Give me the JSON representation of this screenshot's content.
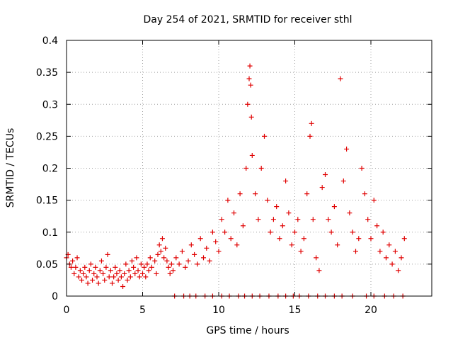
{
  "chart_data": {
    "type": "scatter",
    "title": "Day 254 of 2021, SRMTID for receiver sthl",
    "xlabel": "GPS time / hours",
    "ylabel": "SRMTID / TECUs",
    "xlim": [
      0,
      24
    ],
    "ylim": [
      0,
      0.4
    ],
    "x_ticks": [
      0,
      5,
      10,
      15,
      20
    ],
    "y_ticks": [
      0,
      0.05,
      0.1,
      0.15,
      0.2,
      0.25,
      0.3,
      0.35,
      0.4
    ],
    "grid": true,
    "marker": "+",
    "color": "#e00000",
    "series": [
      {
        "name": "SRMTID",
        "points": [
          [
            0.0,
            0.06
          ],
          [
            0.1,
            0.065
          ],
          [
            0.2,
            0.05
          ],
          [
            0.3,
            0.045
          ],
          [
            0.4,
            0.055
          ],
          [
            0.5,
            0.035
          ],
          [
            0.6,
            0.045
          ],
          [
            0.7,
            0.06
          ],
          [
            0.8,
            0.03
          ],
          [
            0.9,
            0.04
          ],
          [
            1.0,
            0.025
          ],
          [
            1.1,
            0.035
          ],
          [
            1.2,
            0.045
          ],
          [
            1.3,
            0.03
          ],
          [
            1.4,
            0.02
          ],
          [
            1.5,
            0.04
          ],
          [
            1.6,
            0.05
          ],
          [
            1.7,
            0.025
          ],
          [
            1.8,
            0.035
          ],
          [
            1.9,
            0.045
          ],
          [
            2.0,
            0.03
          ],
          [
            2.1,
            0.02
          ],
          [
            2.2,
            0.04
          ],
          [
            2.3,
            0.055
          ],
          [
            2.4,
            0.035
          ],
          [
            2.5,
            0.025
          ],
          [
            2.6,
            0.045
          ],
          [
            2.7,
            0.065
          ],
          [
            2.8,
            0.03
          ],
          [
            2.9,
            0.04
          ],
          [
            3.0,
            0.02
          ],
          [
            3.1,
            0.03
          ],
          [
            3.2,
            0.045
          ],
          [
            3.3,
            0.035
          ],
          [
            3.4,
            0.025
          ],
          [
            3.5,
            0.04
          ],
          [
            3.6,
            0.03
          ],
          [
            3.7,
            0.015
          ],
          [
            3.8,
            0.035
          ],
          [
            3.9,
            0.05
          ],
          [
            4.0,
            0.025
          ],
          [
            4.1,
            0.04
          ],
          [
            4.2,
            0.03
          ],
          [
            4.3,
            0.055
          ],
          [
            4.4,
            0.045
          ],
          [
            4.5,
            0.035
          ],
          [
            4.6,
            0.06
          ],
          [
            4.7,
            0.04
          ],
          [
            4.8,
            0.03
          ],
          [
            4.9,
            0.05
          ],
          [
            5.0,
            0.035
          ],
          [
            5.1,
            0.045
          ],
          [
            5.2,
            0.03
          ],
          [
            5.3,
            0.05
          ],
          [
            5.4,
            0.04
          ],
          [
            5.5,
            0.06
          ],
          [
            5.6,
            0.045
          ],
          [
            5.8,
            0.055
          ],
          [
            5.9,
            0.035
          ],
          [
            6.0,
            0.065
          ],
          [
            6.1,
            0.08
          ],
          [
            6.2,
            0.07
          ],
          [
            6.3,
            0.09
          ],
          [
            6.4,
            0.06
          ],
          [
            6.5,
            0.075
          ],
          [
            6.6,
            0.055
          ],
          [
            6.7,
            0.045
          ],
          [
            6.8,
            0.035
          ],
          [
            6.9,
            0.05
          ],
          [
            7.0,
            0.04
          ],
          [
            7.2,
            0.06
          ],
          [
            7.4,
            0.05
          ],
          [
            7.6,
            0.07
          ],
          [
            7.8,
            0.045
          ],
          [
            8.0,
            0.055
          ],
          [
            8.2,
            0.08
          ],
          [
            8.4,
            0.065
          ],
          [
            8.6,
            0.05
          ],
          [
            8.8,
            0.09
          ],
          [
            9.0,
            0.06
          ],
          [
            9.2,
            0.075
          ],
          [
            9.4,
            0.055
          ],
          [
            9.6,
            0.1
          ],
          [
            9.8,
            0.085
          ],
          [
            10.0,
            0.07
          ],
          [
            10.2,
            0.12
          ],
          [
            10.4,
            0.1
          ],
          [
            10.6,
            0.15
          ],
          [
            10.8,
            0.09
          ],
          [
            11.0,
            0.13
          ],
          [
            11.2,
            0.08
          ],
          [
            11.4,
            0.16
          ],
          [
            11.6,
            0.11
          ],
          [
            11.8,
            0.2
          ],
          [
            11.9,
            0.3
          ],
          [
            12.0,
            0.34
          ],
          [
            12.05,
            0.36
          ],
          [
            12.1,
            0.33
          ],
          [
            12.15,
            0.28
          ],
          [
            12.2,
            0.22
          ],
          [
            12.4,
            0.16
          ],
          [
            12.6,
            0.12
          ],
          [
            12.8,
            0.2
          ],
          [
            13.0,
            0.25
          ],
          [
            13.2,
            0.15
          ],
          [
            13.4,
            0.1
          ],
          [
            13.6,
            0.12
          ],
          [
            13.8,
            0.14
          ],
          [
            14.0,
            0.09
          ],
          [
            14.2,
            0.11
          ],
          [
            14.4,
            0.18
          ],
          [
            14.6,
            0.13
          ],
          [
            14.8,
            0.08
          ],
          [
            15.0,
            0.1
          ],
          [
            15.2,
            0.12
          ],
          [
            15.4,
            0.07
          ],
          [
            15.6,
            0.09
          ],
          [
            15.8,
            0.16
          ],
          [
            16.0,
            0.25
          ],
          [
            16.1,
            0.27
          ],
          [
            16.2,
            0.12
          ],
          [
            16.4,
            0.06
          ],
          [
            16.6,
            0.04
          ],
          [
            16.8,
            0.17
          ],
          [
            17.0,
            0.19
          ],
          [
            17.2,
            0.12
          ],
          [
            17.4,
            0.1
          ],
          [
            17.6,
            0.14
          ],
          [
            17.8,
            0.08
          ],
          [
            18.0,
            0.34
          ],
          [
            18.2,
            0.18
          ],
          [
            18.4,
            0.23
          ],
          [
            18.6,
            0.13
          ],
          [
            18.8,
            0.1
          ],
          [
            19.0,
            0.07
          ],
          [
            19.2,
            0.09
          ],
          [
            19.4,
            0.2
          ],
          [
            19.6,
            0.16
          ],
          [
            19.8,
            0.12
          ],
          [
            20.0,
            0.09
          ],
          [
            20.2,
            0.15
          ],
          [
            20.4,
            0.11
          ],
          [
            20.6,
            0.07
          ],
          [
            20.8,
            0.1
          ],
          [
            21.0,
            0.06
          ],
          [
            21.2,
            0.08
          ],
          [
            21.4,
            0.05
          ],
          [
            21.6,
            0.07
          ],
          [
            21.8,
            0.04
          ],
          [
            22.0,
            0.06
          ],
          [
            22.2,
            0.09
          ],
          [
            7.1,
            0
          ],
          [
            7.7,
            0
          ],
          [
            8.1,
            0
          ],
          [
            8.5,
            0
          ],
          [
            9.1,
            0
          ],
          [
            9.6,
            0
          ],
          [
            10.2,
            0
          ],
          [
            10.7,
            0
          ],
          [
            11.3,
            0
          ],
          [
            11.7,
            0
          ],
          [
            12.2,
            0
          ],
          [
            12.7,
            0
          ],
          [
            13.3,
            0
          ],
          [
            13.9,
            0
          ],
          [
            14.4,
            0
          ],
          [
            14.9,
            0
          ],
          [
            15.3,
            0
          ],
          [
            15.9,
            0
          ],
          [
            16.5,
            0
          ],
          [
            17.0,
            0
          ],
          [
            17.6,
            0
          ],
          [
            18.1,
            0
          ],
          [
            18.8,
            0
          ],
          [
            19.7,
            0
          ],
          [
            20.2,
            0
          ],
          [
            20.9,
            0
          ],
          [
            21.5,
            0
          ],
          [
            22.1,
            0
          ]
        ]
      }
    ]
  }
}
